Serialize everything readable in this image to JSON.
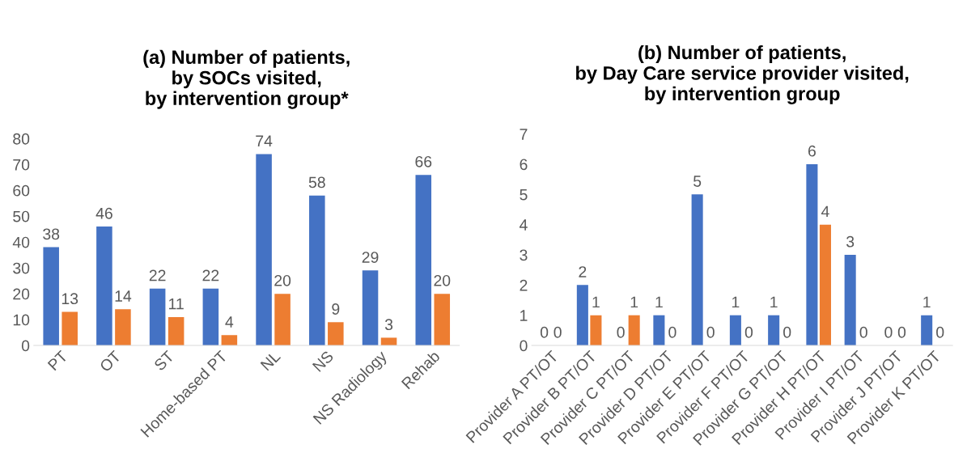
{
  "chart_data": [
    {
      "type": "bar",
      "title": "(a) Number of patients,\nby SOCs visited,\nby intervention group*",
      "categories": [
        "PT",
        "OT",
        "ST",
        "Home-based PT",
        "NL",
        "NS",
        "NS Radiology",
        "Rehab"
      ],
      "series": [
        {
          "color": "#4472c4",
          "values": [
            38,
            46,
            22,
            22,
            74,
            58,
            29,
            66
          ]
        },
        {
          "color": "#ed7d31",
          "values": [
            13,
            14,
            11,
            4,
            20,
            9,
            3,
            20
          ]
        }
      ],
      "ylim": [
        0,
        80
      ],
      "yticks": [
        0,
        10,
        20,
        30,
        40,
        50,
        60,
        70,
        80
      ],
      "data_labels": true,
      "grid": false,
      "legend": false
    },
    {
      "type": "bar",
      "title": "(b) Number of patients,\nby Day Care service provider visited,\nby intervention group",
      "categories": [
        "Provider A PT/OT",
        "Provider B PT/OT",
        "Provider C PT/OT",
        "Provider D PT/OT",
        "Provider E PT/OT",
        "Provider F PT/OT",
        "Provider G PT/OT",
        "Provider H PT/OT",
        "Provider I PT/OT",
        "Provider J PT/OT",
        "Provider K PT/OT"
      ],
      "series": [
        {
          "color": "#4472c4",
          "values": [
            0,
            2,
            0,
            1,
            5,
            1,
            1,
            6,
            3,
            0,
            1
          ]
        },
        {
          "color": "#ed7d31",
          "values": [
            0,
            1,
            1,
            0,
            0,
            0,
            0,
            4,
            0,
            0,
            0
          ]
        }
      ],
      "ylim": [
        0,
        7
      ],
      "yticks": [
        0,
        1,
        2,
        3,
        4,
        5,
        6,
        7
      ],
      "data_labels": true,
      "grid": false,
      "legend": false
    }
  ]
}
